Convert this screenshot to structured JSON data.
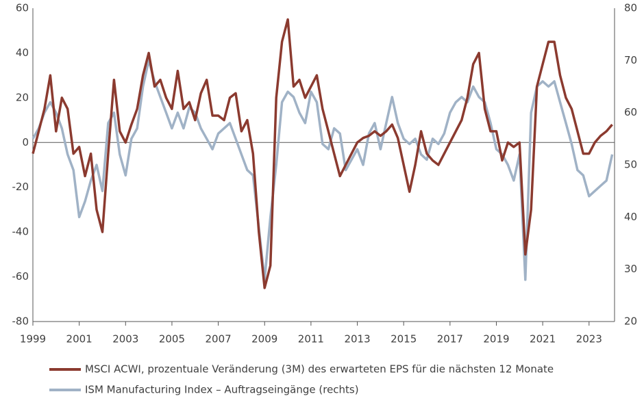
{
  "chart_data": {
    "type": "line",
    "x": [
      1999,
      1999.25,
      1999.5,
      1999.75,
      2000,
      2000.25,
      2000.5,
      2000.75,
      2001,
      2001.25,
      2001.5,
      2001.75,
      2002,
      2002.25,
      2002.5,
      2002.75,
      2003,
      2003.25,
      2003.5,
      2003.75,
      2004,
      2004.25,
      2004.5,
      2004.75,
      2005,
      2005.25,
      2005.5,
      2005.75,
      2006,
      2006.25,
      2006.5,
      2006.75,
      2007,
      2007.25,
      2007.5,
      2007.75,
      2008,
      2008.25,
      2008.5,
      2008.75,
      2009,
      2009.25,
      2009.5,
      2009.75,
      2010,
      2010.25,
      2010.5,
      2010.75,
      2011,
      2011.25,
      2011.5,
      2011.75,
      2012,
      2012.25,
      2012.5,
      2012.75,
      2013,
      2013.25,
      2013.5,
      2013.75,
      2014,
      2014.25,
      2014.5,
      2014.75,
      2015,
      2015.25,
      2015.5,
      2015.75,
      2016,
      2016.25,
      2016.5,
      2016.75,
      2017,
      2017.25,
      2017.5,
      2017.75,
      2018,
      2018.25,
      2018.5,
      2018.75,
      2019,
      2019.25,
      2019.5,
      2019.75,
      2020,
      2020.25,
      2020.5,
      2020.75,
      2021,
      2021.25,
      2021.5,
      2021.75,
      2022,
      2022.25,
      2022.5,
      2022.75,
      2023,
      2023.25,
      2023.5,
      2023.75,
      2024
    ],
    "series": [
      {
        "name": "MSCI ACWI, prozentuale Veränderung (3M) des erwarteten EPS für die nächsten 12 Monate",
        "color": "#8b3a2f",
        "axis": "y",
        "values": [
          -5,
          5,
          15,
          30,
          5,
          20,
          15,
          -5,
          -2,
          -15,
          -5,
          -30,
          -40,
          -5,
          28,
          5,
          0,
          8,
          15,
          30,
          40,
          25,
          28,
          20,
          15,
          32,
          15,
          18,
          10,
          22,
          28,
          12,
          12,
          10,
          20,
          22,
          5,
          10,
          -5,
          -40,
          -65,
          -55,
          20,
          45,
          55,
          25,
          28,
          20,
          25,
          30,
          15,
          5,
          -5,
          -15,
          -10,
          -5,
          0,
          2,
          3,
          5,
          3,
          5,
          8,
          2,
          -10,
          -22,
          -10,
          5,
          -5,
          -8,
          -10,
          -5,
          0,
          5,
          10,
          20,
          35,
          40,
          15,
          5,
          5,
          -8,
          0,
          -2,
          0,
          -50,
          -30,
          25,
          35,
          45,
          45,
          30,
          20,
          15,
          5,
          -5,
          -5,
          0,
          3,
          5,
          8
        ]
      },
      {
        "name": "ISM Manufacturing Index – Auftragseingänge (rechts)",
        "color": "#a0b2c6",
        "axis": "y2",
        "values": [
          55,
          57,
          60,
          62,
          60,
          57,
          52,
          49,
          40,
          43,
          47,
          50,
          45,
          58,
          60,
          52,
          48,
          55,
          57,
          65,
          70,
          66,
          63,
          60,
          57,
          60,
          57,
          61,
          60,
          57,
          55,
          53,
          56,
          57,
          58,
          55,
          52,
          49,
          48,
          38,
          28,
          40,
          50,
          62,
          64,
          63,
          60,
          58,
          64,
          62,
          54,
          53,
          57,
          56,
          49,
          51,
          53,
          50,
          56,
          58,
          53,
          58,
          63,
          58,
          55,
          54,
          55,
          52,
          51,
          55,
          54,
          56,
          60,
          62,
          63,
          62,
          65,
          63,
          62,
          58,
          53,
          52,
          50,
          47,
          52,
          28,
          60,
          65,
          66,
          65,
          66,
          62,
          58,
          54,
          49,
          48,
          44,
          45,
          46,
          47,
          52
        ]
      }
    ],
    "xlim": [
      1999,
      2024.1
    ],
    "xticks": [
      1999,
      2001,
      2003,
      2005,
      2007,
      2009,
      2011,
      2013,
      2015,
      2017,
      2019,
      2021,
      2023
    ],
    "ylim": [
      -80,
      60
    ],
    "yticks": [
      -80,
      -60,
      -40,
      -20,
      0,
      20,
      40,
      60
    ],
    "y2lim": [
      20,
      80
    ],
    "y2ticks": [
      20,
      30,
      40,
      50,
      60,
      70,
      80
    ]
  }
}
